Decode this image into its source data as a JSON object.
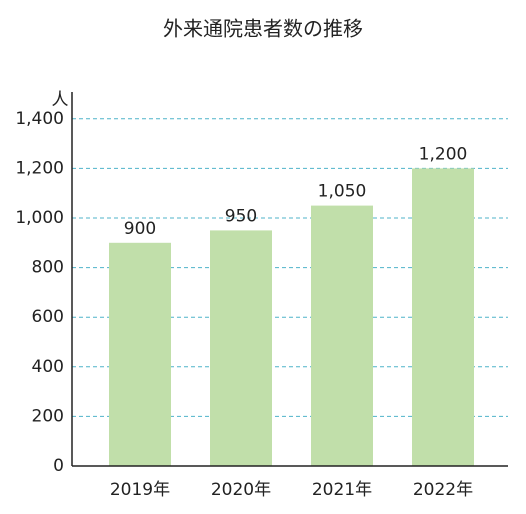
{
  "chart_data": {
    "type": "bar",
    "title": "外来通院患者数の推移",
    "y_unit": "人",
    "categories": [
      "2019年",
      "2020年",
      "2021年",
      "2022年"
    ],
    "values": [
      900,
      950,
      1050,
      1200
    ],
    "value_labels": [
      "900",
      "950",
      "1,050",
      "1,200"
    ],
    "color": "#c1dfaa",
    "ylim": [
      0,
      1500
    ],
    "yticks": [
      0,
      200,
      400,
      600,
      800,
      {
        "value": 1000,
        "label": "1,000"
      },
      {
        "value": 1200,
        "label": "1,200"
      },
      {
        "value": 1400,
        "label": "1,400"
      }
    ],
    "grid": true
  }
}
